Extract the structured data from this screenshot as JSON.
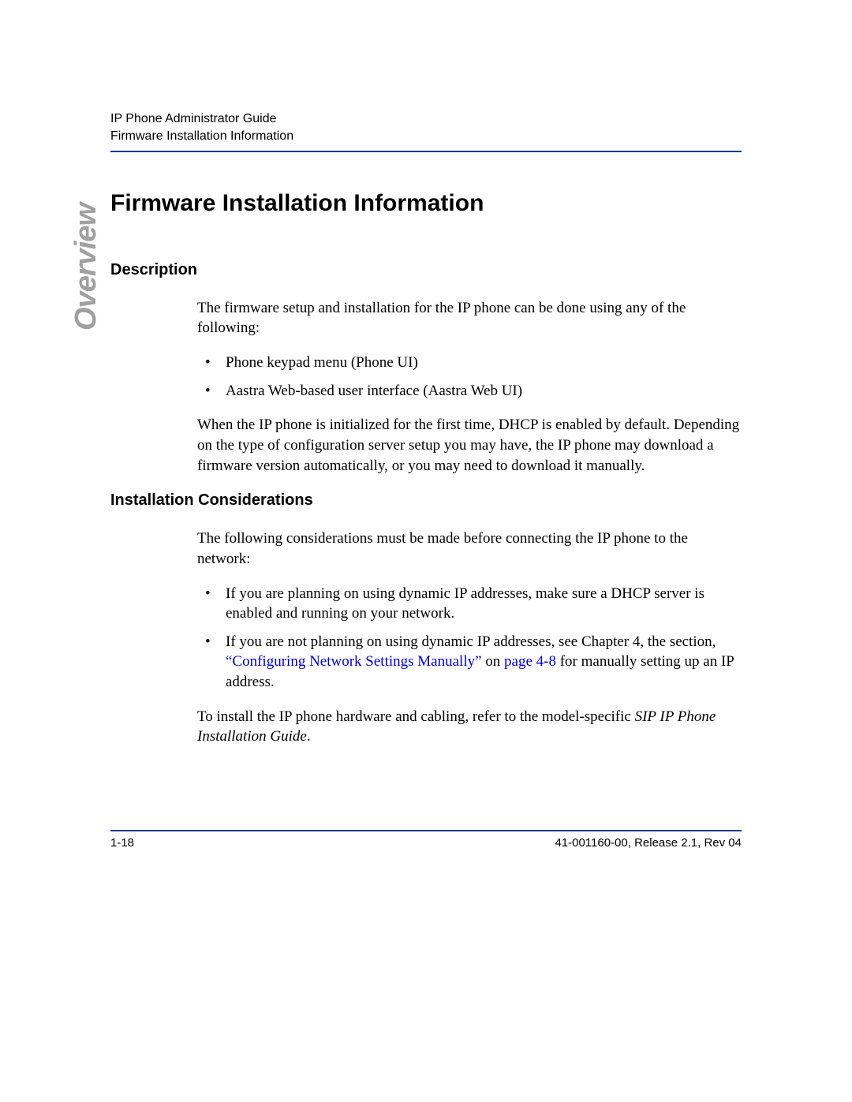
{
  "colors": {
    "rule": "#183a8c",
    "link": "#0000cc",
    "side_tab": "#a0a0a0",
    "text": "#000000",
    "background": "#ffffff"
  },
  "typography": {
    "header_font": "Arial",
    "body_font": "Times New Roman",
    "header_size_pt": 12,
    "h1_size_pt": 22,
    "h2_size_pt": 15,
    "body_size_pt": 14,
    "side_tab_size_pt": 28
  },
  "header": {
    "line1": "IP Phone Administrator Guide",
    "line2": "Firmware Installation Information"
  },
  "side_tab": "Overview",
  "title": "Firmware Installation Information",
  "section1": {
    "heading": "Description",
    "para1": "The firmware setup and installation for the IP phone can be done using any of the following:",
    "bullets": [
      "Phone keypad menu (Phone UI)",
      "Aastra Web-based user interface (Aastra Web UI)"
    ],
    "para2": "When the IP phone is initialized for the first time, DHCP is enabled by default. Depending on the type of configuration server setup you may have, the IP phone may download a firmware version automatically, or you may need to download it manually."
  },
  "section2": {
    "heading": "Installation Considerations",
    "para1": "The following considerations must be made before connecting the IP phone to the network:",
    "bullet1": "If you are planning on using dynamic IP addresses, make sure a DHCP server is enabled and running on your network.",
    "bullet2_pre": "If you are not planning on using dynamic IP addresses, see Chapter 4, the section, ",
    "bullet2_link1": "“Configuring Network Settings Manually”",
    "bullet2_mid": " on ",
    "bullet2_link2": "page 4-8",
    "bullet2_post": " for manually setting up an IP address.",
    "para2_pre": "To install the IP phone hardware and cabling, refer to the model-specific ",
    "para2_italic": "SIP IP Phone Installation Guide",
    "para2_post": "."
  },
  "footer": {
    "left": "1-18",
    "right": "41-001160-00, Release 2.1, Rev 04"
  }
}
